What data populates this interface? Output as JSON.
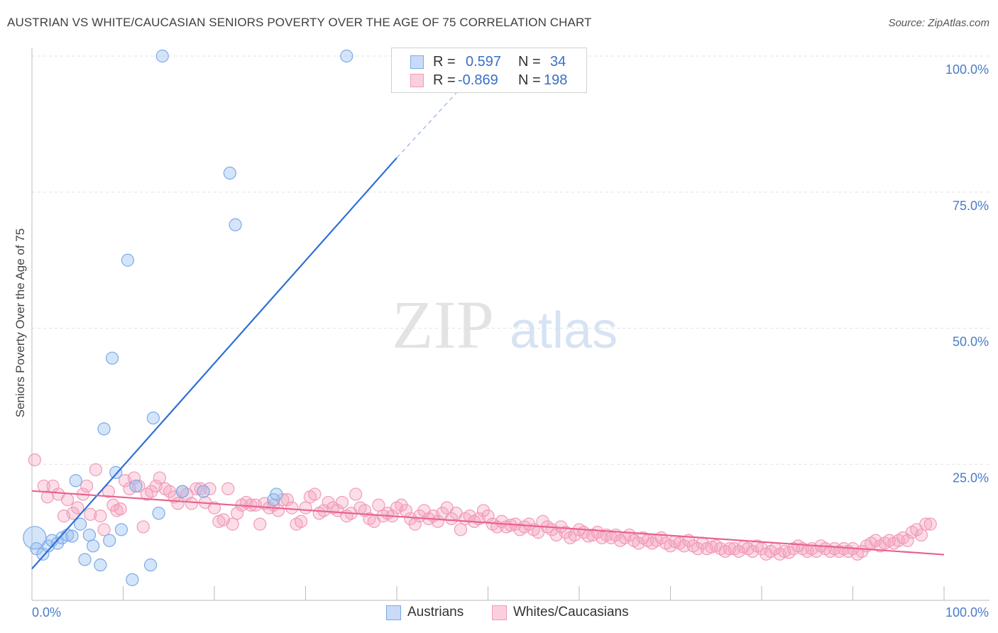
{
  "title": "AUSTRIAN VS WHITE/CAUCASIAN SENIORS POVERTY OVER THE AGE OF 75 CORRELATION CHART",
  "source": "Source: ZipAtlas.com",
  "watermark": {
    "zip": "ZIP",
    "atlas": "atlas"
  },
  "legend": {
    "r_label": "R =",
    "n_label": "N =",
    "series": [
      {
        "name": "Austrians",
        "r": "0.597",
        "n": "34",
        "color": "#7baae8"
      },
      {
        "name": "Whites/Caucasians",
        "r": "-0.869",
        "n": "198",
        "color": "#f29ab6"
      }
    ]
  },
  "chart_data": {
    "type": "scatter",
    "title": "AUSTRIAN VS WHITE/CAUCASIAN SENIORS POVERTY OVER THE AGE OF 75 CORRELATION CHART",
    "xlabel": "",
    "ylabel": "Seniors Poverty Over the Age of 75",
    "xlim": [
      0,
      100
    ],
    "ylim": [
      0,
      100
    ],
    "x_tick_labels": [
      "0.0%",
      "100.0%"
    ],
    "y_tick_labels": [
      "25.0%",
      "50.0%",
      "75.0%",
      "100.0%"
    ],
    "y_ticks": [
      25,
      50,
      75,
      100
    ],
    "grid": true,
    "series": [
      {
        "name": "Austrians",
        "color": "#7baae8",
        "points": [
          [
            0.5,
            9.5
          ],
          [
            1.2,
            8.5
          ],
          [
            1.8,
            10
          ],
          [
            2.2,
            11
          ],
          [
            2.8,
            10.5
          ],
          [
            3.3,
            11.5
          ],
          [
            3.9,
            12
          ],
          [
            4.4,
            11.8
          ],
          [
            4.8,
            22
          ],
          [
            5.3,
            14
          ],
          [
            5.8,
            7.5
          ],
          [
            6.3,
            12
          ],
          [
            6.7,
            10
          ],
          [
            7.5,
            6.5
          ],
          [
            7.9,
            31.5
          ],
          [
            8.5,
            11
          ],
          [
            8.8,
            44.5
          ],
          [
            9.2,
            23.5
          ],
          [
            9.8,
            13
          ],
          [
            10.5,
            62.5
          ],
          [
            11.0,
            3.8
          ],
          [
            11.4,
            21
          ],
          [
            13.0,
            6.5
          ],
          [
            13.3,
            33.5
          ],
          [
            13.9,
            16
          ],
          [
            14.3,
            100
          ],
          [
            16.5,
            20
          ],
          [
            18.8,
            20
          ],
          [
            21.7,
            78.5
          ],
          [
            22.3,
            69
          ],
          [
            26.5,
            18.5
          ],
          [
            26.8,
            19.5
          ],
          [
            34.5,
            100
          ],
          [
            0.3,
            11.5
          ]
        ],
        "fit": {
          "x": [
            0,
            40
          ],
          "y": [
            5.8,
            81.3
          ]
        },
        "fit_dashed": {
          "x": [
            40,
            47.5
          ],
          "y": [
            81.3,
            95
          ]
        }
      },
      {
        "name": "Whites/Caucasians",
        "color": "#f29ab6",
        "points": [
          [
            0.3,
            25.8
          ],
          [
            1.3,
            21
          ],
          [
            1.7,
            19
          ],
          [
            2.3,
            21
          ],
          [
            2.9,
            19.5
          ],
          [
            3.5,
            15.5
          ],
          [
            3.9,
            18.5
          ],
          [
            4.5,
            16
          ],
          [
            5.0,
            17
          ],
          [
            5.6,
            19.5
          ],
          [
            6.0,
            21
          ],
          [
            6.4,
            15.8
          ],
          [
            7.0,
            24
          ],
          [
            7.5,
            15.5
          ],
          [
            7.9,
            13
          ],
          [
            8.4,
            20
          ],
          [
            8.9,
            17.5
          ],
          [
            9.3,
            16.5
          ],
          [
            9.7,
            16.8
          ],
          [
            10.2,
            22
          ],
          [
            10.7,
            20.5
          ],
          [
            11.2,
            22.5
          ],
          [
            11.7,
            21
          ],
          [
            12.2,
            13.5
          ],
          [
            12.6,
            19.5
          ],
          [
            13.1,
            20
          ],
          [
            13.6,
            21
          ],
          [
            14.0,
            22.5
          ],
          [
            14.6,
            20.5
          ],
          [
            15.1,
            20
          ],
          [
            15.6,
            19
          ],
          [
            16.0,
            17.8
          ],
          [
            16.5,
            20
          ],
          [
            17.0,
            19.5
          ],
          [
            17.5,
            17.8
          ],
          [
            18.0,
            20.5
          ],
          [
            18.5,
            20.5
          ],
          [
            19.0,
            18
          ],
          [
            19.5,
            20.5
          ],
          [
            20.0,
            17
          ],
          [
            20.5,
            14.5
          ],
          [
            21.0,
            14.8
          ],
          [
            21.5,
            20.5
          ],
          [
            22.0,
            14
          ],
          [
            22.5,
            16
          ],
          [
            23.0,
            17.5
          ],
          [
            23.5,
            18
          ],
          [
            24.0,
            17.5
          ],
          [
            24.5,
            17.5
          ],
          [
            25.0,
            14
          ],
          [
            25.5,
            17.8
          ],
          [
            26.0,
            17
          ],
          [
            26.5,
            17.5
          ],
          [
            27.0,
            16.5
          ],
          [
            27.5,
            18.5
          ],
          [
            28.0,
            18.5
          ],
          [
            28.5,
            17
          ],
          [
            29.0,
            14
          ],
          [
            29.5,
            14.5
          ],
          [
            30.0,
            17
          ],
          [
            30.5,
            19
          ],
          [
            31.0,
            19.5
          ],
          [
            31.5,
            16
          ],
          [
            32.0,
            16.5
          ],
          [
            32.5,
            18
          ],
          [
            33.0,
            17
          ],
          [
            33.5,
            16.5
          ],
          [
            34.0,
            18
          ],
          [
            34.5,
            15.5
          ],
          [
            35.0,
            16
          ],
          [
            35.5,
            19.5
          ],
          [
            36.0,
            17
          ],
          [
            36.5,
            16.5
          ],
          [
            37.0,
            15
          ],
          [
            37.5,
            14.5
          ],
          [
            38.0,
            17.5
          ],
          [
            38.5,
            15.5
          ],
          [
            39.0,
            16
          ],
          [
            39.5,
            15.5
          ],
          [
            40.0,
            17
          ],
          [
            40.5,
            17.5
          ],
          [
            41.0,
            16.5
          ],
          [
            41.5,
            15
          ],
          [
            42.0,
            14
          ],
          [
            42.5,
            15.5
          ],
          [
            43.0,
            16.5
          ],
          [
            43.5,
            15
          ],
          [
            44.0,
            15.5
          ],
          [
            44.5,
            14.5
          ],
          [
            45.0,
            16
          ],
          [
            45.5,
            17
          ],
          [
            46.0,
            15
          ],
          [
            46.5,
            16
          ],
          [
            47.0,
            13
          ],
          [
            47.5,
            15
          ],
          [
            48.0,
            15.5
          ],
          [
            48.5,
            14.5
          ],
          [
            49.0,
            15
          ],
          [
            49.5,
            16.5
          ],
          [
            50.0,
            15.5
          ],
          [
            50.5,
            14
          ],
          [
            51.0,
            13.5
          ],
          [
            51.5,
            14.5
          ],
          [
            52.0,
            13.5
          ],
          [
            52.5,
            13.8
          ],
          [
            53.0,
            14
          ],
          [
            53.5,
            13
          ],
          [
            54.0,
            13.5
          ],
          [
            54.5,
            14
          ],
          [
            55.0,
            13
          ],
          [
            55.5,
            12.5
          ],
          [
            56.0,
            14.5
          ],
          [
            56.5,
            13.5
          ],
          [
            57.0,
            13
          ],
          [
            57.5,
            12
          ],
          [
            58.0,
            13.5
          ],
          [
            58.5,
            12.5
          ],
          [
            59.0,
            11.5
          ],
          [
            59.5,
            12
          ],
          [
            60.0,
            13
          ],
          [
            60.5,
            12.5
          ],
          [
            61.0,
            11.8
          ],
          [
            61.5,
            12
          ],
          [
            62.0,
            12.5
          ],
          [
            62.5,
            11.5
          ],
          [
            63.0,
            12
          ],
          [
            63.5,
            11.5
          ],
          [
            64.0,
            12
          ],
          [
            64.5,
            11
          ],
          [
            65.0,
            11.5
          ],
          [
            65.5,
            12
          ],
          [
            66.0,
            11
          ],
          [
            66.5,
            10.5
          ],
          [
            67.0,
            11.5
          ],
          [
            67.5,
            11
          ],
          [
            68.0,
            10.5
          ],
          [
            68.5,
            11
          ],
          [
            69.0,
            11.5
          ],
          [
            69.5,
            10.5
          ],
          [
            70.0,
            10
          ],
          [
            70.5,
            10.8
          ],
          [
            71.0,
            10.5
          ],
          [
            71.5,
            10
          ],
          [
            72.0,
            11
          ],
          [
            72.5,
            10
          ],
          [
            73.0,
            9.5
          ],
          [
            73.5,
            10.5
          ],
          [
            74.0,
            9.5
          ],
          [
            74.5,
            9.8
          ],
          [
            75.0,
            10
          ],
          [
            75.5,
            9.5
          ],
          [
            76.0,
            9
          ],
          [
            76.5,
            9.5
          ],
          [
            77.0,
            9.5
          ],
          [
            77.5,
            9
          ],
          [
            78.0,
            9.8
          ],
          [
            78.5,
            9.5
          ],
          [
            79.0,
            9
          ],
          [
            79.5,
            10
          ],
          [
            80.0,
            9.5
          ],
          [
            80.5,
            8.5
          ],
          [
            81.0,
            9
          ],
          [
            81.5,
            9.5
          ],
          [
            82.0,
            8.5
          ],
          [
            82.5,
            9
          ],
          [
            83.0,
            8.8
          ],
          [
            83.5,
            9.5
          ],
          [
            84.0,
            10
          ],
          [
            84.5,
            9.5
          ],
          [
            85.0,
            9
          ],
          [
            85.5,
            9.5
          ],
          [
            86.0,
            9
          ],
          [
            86.5,
            10
          ],
          [
            87.0,
            9.5
          ],
          [
            87.5,
            9
          ],
          [
            88.0,
            9.5
          ],
          [
            88.5,
            9
          ],
          [
            89.0,
            9.5
          ],
          [
            89.5,
            9
          ],
          [
            90.0,
            9.5
          ],
          [
            90.5,
            8.5
          ],
          [
            91.0,
            9
          ],
          [
            91.5,
            10
          ],
          [
            92.0,
            10.5
          ],
          [
            92.5,
            11
          ],
          [
            93.0,
            10
          ],
          [
            93.5,
            10.5
          ],
          [
            94.0,
            11
          ],
          [
            94.5,
            10.5
          ],
          [
            95.0,
            11
          ],
          [
            95.5,
            11.5
          ],
          [
            96.0,
            11
          ],
          [
            96.5,
            12.5
          ],
          [
            97.0,
            13
          ],
          [
            97.5,
            12
          ],
          [
            98.0,
            14
          ],
          [
            98.5,
            14
          ]
        ],
        "fit": {
          "x": [
            0,
            100
          ],
          "y": [
            20.1,
            8.4
          ]
        }
      }
    ]
  }
}
